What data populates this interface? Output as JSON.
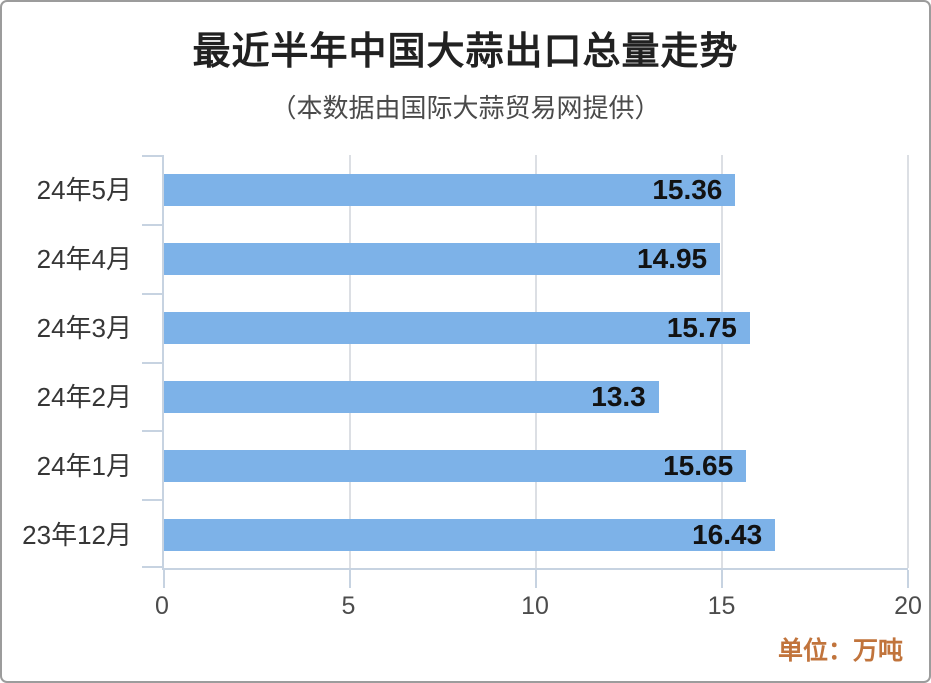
{
  "header": {
    "title": "最近半年中国大蒜出口总量走势",
    "subtitle": "（本数据由国际大蒜贸易网提供）"
  },
  "chart_data": {
    "type": "bar",
    "orientation": "horizontal",
    "title": "最近半年中国大蒜出口总量走势",
    "subtitle": "（本数据由国际大蒜贸易网提供）",
    "categories": [
      "24年5月",
      "24年4月",
      "24年3月",
      "24年2月",
      "24年1月",
      "23年12月"
    ],
    "values": [
      15.36,
      14.95,
      15.75,
      13.3,
      15.65,
      16.43
    ],
    "value_labels": [
      "15.36",
      "14.95",
      "15.75",
      "13.3",
      "15.65",
      "16.43"
    ],
    "x_ticks": [
      "0",
      "5",
      "10",
      "15",
      "20"
    ],
    "xlim": [
      0,
      20
    ],
    "grid": true,
    "legend": false,
    "unit_note": "单位：万吨",
    "colors": {
      "bar": "#7db2e8",
      "axis": "#c7d3e1",
      "gridline": "#dcdfe4",
      "value_label": "#121212",
      "category_label": "#363636",
      "tick_label": "#4c4c4c",
      "title": "#212121",
      "subtitle": "#4a4a4a",
      "unit_note": "#c1743c",
      "border": "#9c9c9c"
    }
  }
}
